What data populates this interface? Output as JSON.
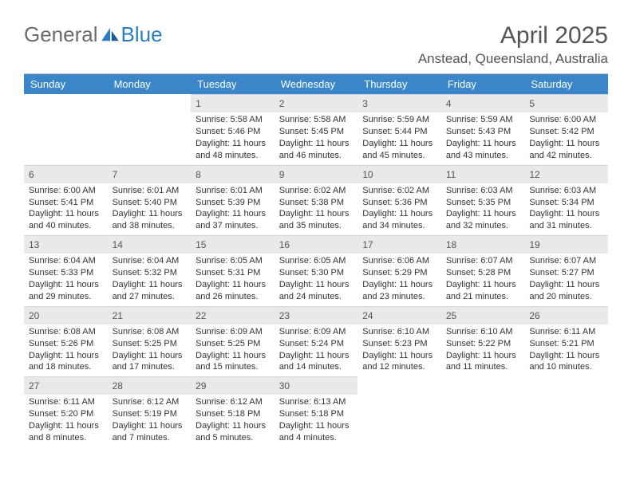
{
  "brand": {
    "part1": "General",
    "part2": "Blue"
  },
  "title": "April 2025",
  "location": "Anstead, Queensland, Australia",
  "colors": {
    "header_bg": "#3a86c8",
    "header_text": "#ffffff",
    "daynum_bg": "#e7e9eb",
    "text": "#333333",
    "muted": "#555555",
    "logo_accent": "#2d7dc3"
  },
  "weekdays": [
    "Sunday",
    "Monday",
    "Tuesday",
    "Wednesday",
    "Thursday",
    "Friday",
    "Saturday"
  ],
  "layout": {
    "first_day_col": 2,
    "days_in_month": 30,
    "rows": 5,
    "cols": 7
  },
  "days": [
    {
      "n": 1,
      "sunrise": "5:58 AM",
      "sunset": "5:46 PM",
      "dl": "11 hours and 48 minutes."
    },
    {
      "n": 2,
      "sunrise": "5:58 AM",
      "sunset": "5:45 PM",
      "dl": "11 hours and 46 minutes."
    },
    {
      "n": 3,
      "sunrise": "5:59 AM",
      "sunset": "5:44 PM",
      "dl": "11 hours and 45 minutes."
    },
    {
      "n": 4,
      "sunrise": "5:59 AM",
      "sunset": "5:43 PM",
      "dl": "11 hours and 43 minutes."
    },
    {
      "n": 5,
      "sunrise": "6:00 AM",
      "sunset": "5:42 PM",
      "dl": "11 hours and 42 minutes."
    },
    {
      "n": 6,
      "sunrise": "6:00 AM",
      "sunset": "5:41 PM",
      "dl": "11 hours and 40 minutes."
    },
    {
      "n": 7,
      "sunrise": "6:01 AM",
      "sunset": "5:40 PM",
      "dl": "11 hours and 38 minutes."
    },
    {
      "n": 8,
      "sunrise": "6:01 AM",
      "sunset": "5:39 PM",
      "dl": "11 hours and 37 minutes."
    },
    {
      "n": 9,
      "sunrise": "6:02 AM",
      "sunset": "5:38 PM",
      "dl": "11 hours and 35 minutes."
    },
    {
      "n": 10,
      "sunrise": "6:02 AM",
      "sunset": "5:36 PM",
      "dl": "11 hours and 34 minutes."
    },
    {
      "n": 11,
      "sunrise": "6:03 AM",
      "sunset": "5:35 PM",
      "dl": "11 hours and 32 minutes."
    },
    {
      "n": 12,
      "sunrise": "6:03 AM",
      "sunset": "5:34 PM",
      "dl": "11 hours and 31 minutes."
    },
    {
      "n": 13,
      "sunrise": "6:04 AM",
      "sunset": "5:33 PM",
      "dl": "11 hours and 29 minutes."
    },
    {
      "n": 14,
      "sunrise": "6:04 AM",
      "sunset": "5:32 PM",
      "dl": "11 hours and 27 minutes."
    },
    {
      "n": 15,
      "sunrise": "6:05 AM",
      "sunset": "5:31 PM",
      "dl": "11 hours and 26 minutes."
    },
    {
      "n": 16,
      "sunrise": "6:05 AM",
      "sunset": "5:30 PM",
      "dl": "11 hours and 24 minutes."
    },
    {
      "n": 17,
      "sunrise": "6:06 AM",
      "sunset": "5:29 PM",
      "dl": "11 hours and 23 minutes."
    },
    {
      "n": 18,
      "sunrise": "6:07 AM",
      "sunset": "5:28 PM",
      "dl": "11 hours and 21 minutes."
    },
    {
      "n": 19,
      "sunrise": "6:07 AM",
      "sunset": "5:27 PM",
      "dl": "11 hours and 20 minutes."
    },
    {
      "n": 20,
      "sunrise": "6:08 AM",
      "sunset": "5:26 PM",
      "dl": "11 hours and 18 minutes."
    },
    {
      "n": 21,
      "sunrise": "6:08 AM",
      "sunset": "5:25 PM",
      "dl": "11 hours and 17 minutes."
    },
    {
      "n": 22,
      "sunrise": "6:09 AM",
      "sunset": "5:25 PM",
      "dl": "11 hours and 15 minutes."
    },
    {
      "n": 23,
      "sunrise": "6:09 AM",
      "sunset": "5:24 PM",
      "dl": "11 hours and 14 minutes."
    },
    {
      "n": 24,
      "sunrise": "6:10 AM",
      "sunset": "5:23 PM",
      "dl": "11 hours and 12 minutes."
    },
    {
      "n": 25,
      "sunrise": "6:10 AM",
      "sunset": "5:22 PM",
      "dl": "11 hours and 11 minutes."
    },
    {
      "n": 26,
      "sunrise": "6:11 AM",
      "sunset": "5:21 PM",
      "dl": "11 hours and 10 minutes."
    },
    {
      "n": 27,
      "sunrise": "6:11 AM",
      "sunset": "5:20 PM",
      "dl": "11 hours and 8 minutes."
    },
    {
      "n": 28,
      "sunrise": "6:12 AM",
      "sunset": "5:19 PM",
      "dl": "11 hours and 7 minutes."
    },
    {
      "n": 29,
      "sunrise": "6:12 AM",
      "sunset": "5:18 PM",
      "dl": "11 hours and 5 minutes."
    },
    {
      "n": 30,
      "sunrise": "6:13 AM",
      "sunset": "5:18 PM",
      "dl": "11 hours and 4 minutes."
    }
  ],
  "labels": {
    "sunrise": "Sunrise: ",
    "sunset": "Sunset: ",
    "daylight": "Daylight: "
  }
}
